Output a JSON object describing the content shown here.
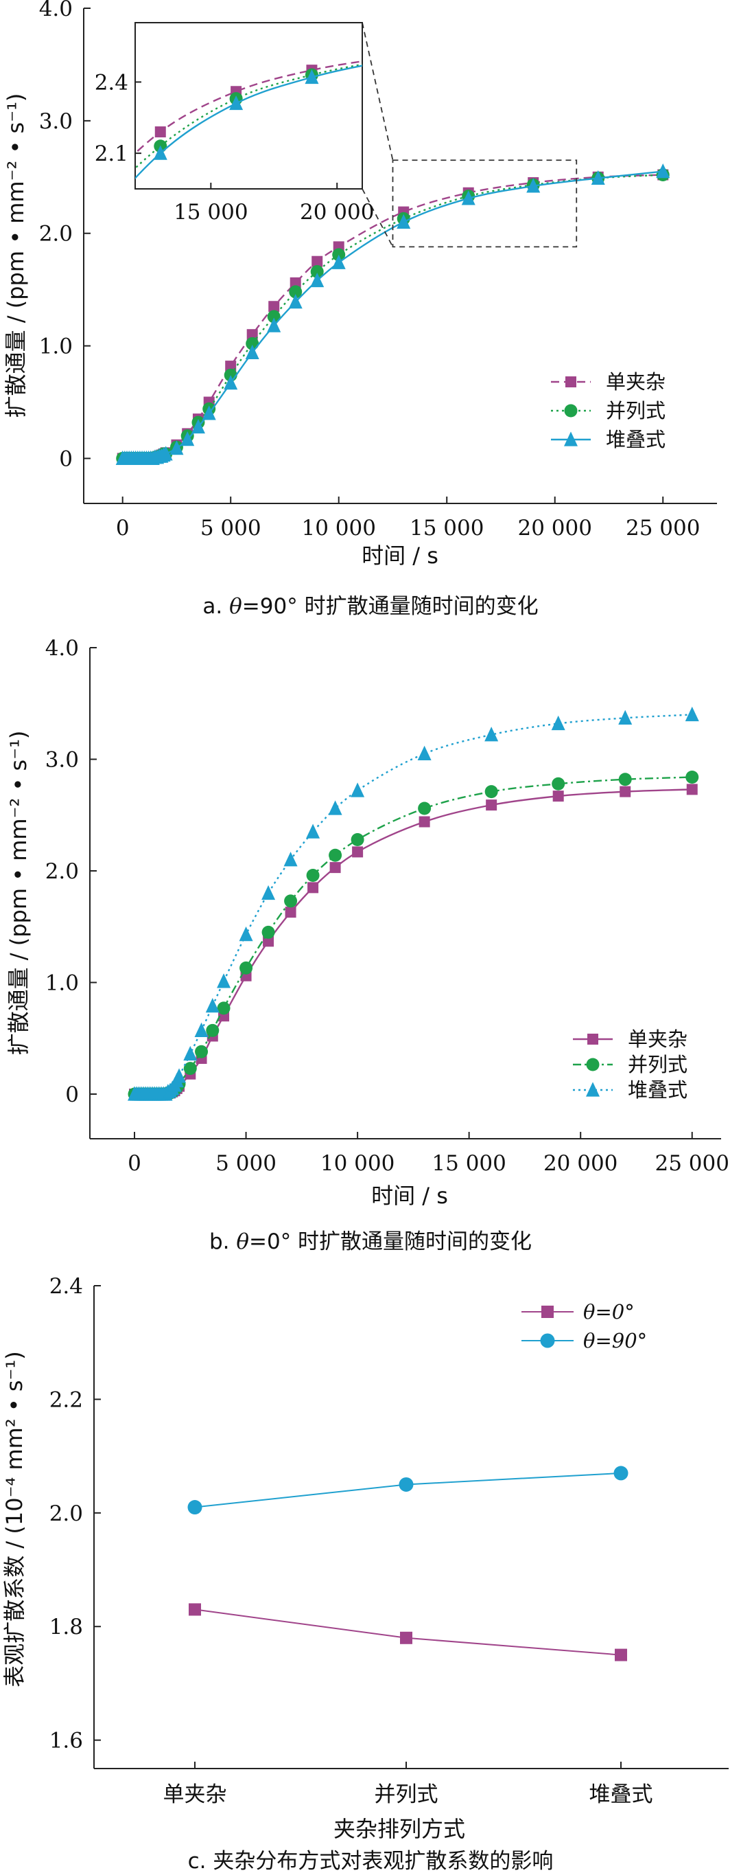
{
  "captions": {
    "a_pre": "a. ",
    "a_var": "θ",
    "a_post": "=90° 时扩散通量随时间的变化",
    "b_pre": "b. ",
    "b_var": "θ",
    "b_post": "=0° 时扩散通量随时间的变化",
    "c": "c. 夹杂分布方式对表观扩散系数的影响"
  },
  "colors": {
    "purple": "#a0448a",
    "green": "#1ea24a",
    "blue": "#1fa0cf",
    "axis": "#222222"
  },
  "chart_data": [
    {
      "id": "a",
      "type": "line",
      "xlabel": "时间 / s",
      "ylabel": "扩散通量 / (ppm • mm⁻² • s⁻¹)",
      "xlim": [
        -1800,
        27500
      ],
      "ylim": [
        -0.4,
        4.0
      ],
      "xticks": [
        0,
        5000,
        10000,
        15000,
        20000,
        25000
      ],
      "xtick_labels": [
        "0",
        "5 000",
        "10 000",
        "15 000",
        "20 000",
        "25 000"
      ],
      "yticks": [
        0,
        1.0,
        2.0,
        3.0,
        4.0
      ],
      "ytick_labels": [
        "0",
        "1.0",
        "2.0",
        "3.0",
        "4.0"
      ],
      "legend_position": "right",
      "series": [
        {
          "name": "单夹杂",
          "color": "#a0448a",
          "marker": "square",
          "line": "dashed",
          "x": [
            0,
            100,
            200,
            300,
            400,
            500,
            600,
            700,
            800,
            900,
            1000,
            1100,
            1200,
            1300,
            1400,
            1500,
            1600,
            1700,
            1800,
            1900,
            2000,
            2500,
            3000,
            3500,
            4000,
            5000,
            6000,
            7000,
            8000,
            9000,
            10000,
            13000,
            16000,
            19000,
            22000,
            25000
          ],
          "y": [
            0,
            0,
            0,
            0,
            0,
            0,
            0,
            0,
            0,
            0,
            0,
            0,
            0,
            0,
            0,
            0.01,
            0.01,
            0.02,
            0.03,
            0.04,
            0.05,
            0.12,
            0.22,
            0.35,
            0.5,
            0.82,
            1.1,
            1.35,
            1.56,
            1.75,
            1.88,
            2.19,
            2.36,
            2.45,
            2.5,
            2.52
          ]
        },
        {
          "name": "并列式",
          "color": "#1ea24a",
          "marker": "circle",
          "line": "dotted",
          "x": [
            0,
            100,
            200,
            300,
            400,
            500,
            600,
            700,
            800,
            900,
            1000,
            1100,
            1200,
            1300,
            1400,
            1500,
            1600,
            1700,
            1800,
            1900,
            2000,
            2500,
            3000,
            3500,
            4000,
            5000,
            6000,
            7000,
            8000,
            9000,
            10000,
            13000,
            16000,
            19000,
            22000,
            25000
          ],
          "y": [
            0,
            0,
            0,
            0,
            0,
            0,
            0,
            0,
            0,
            0,
            0,
            0,
            0,
            0,
            0,
            0.01,
            0.01,
            0.02,
            0.03,
            0.04,
            0.04,
            0.1,
            0.2,
            0.32,
            0.44,
            0.74,
            1.02,
            1.26,
            1.48,
            1.66,
            1.81,
            2.13,
            2.33,
            2.43,
            2.49,
            2.52
          ]
        },
        {
          "name": "堆叠式",
          "color": "#1fa0cf",
          "marker": "triangle",
          "line": "solid",
          "x": [
            0,
            100,
            200,
            300,
            400,
            500,
            600,
            700,
            800,
            900,
            1000,
            1100,
            1200,
            1300,
            1400,
            1500,
            1600,
            1700,
            1800,
            1900,
            2000,
            2500,
            3000,
            3500,
            4000,
            5000,
            6000,
            7000,
            8000,
            9000,
            10000,
            13000,
            16000,
            19000,
            22000,
            25000
          ],
          "y": [
            0,
            0,
            0,
            0,
            0,
            0,
            0,
            0,
            0,
            0,
            0,
            0,
            0,
            0,
            0,
            0.01,
            0.01,
            0.02,
            0.02,
            0.03,
            0.04,
            0.09,
            0.17,
            0.28,
            0.4,
            0.67,
            0.94,
            1.18,
            1.39,
            1.58,
            1.74,
            2.1,
            2.31,
            2.42,
            2.49,
            2.55
          ]
        }
      ],
      "inset": {
        "xlim": [
          12000,
          21000
        ],
        "ylim": [
          1.95,
          2.65
        ],
        "xticks": [
          15000,
          20000
        ],
        "xtick_labels": [
          "15 000",
          "20 000"
        ],
        "yticks": [
          2.1,
          2.4
        ],
        "ytick_labels": [
          "2.1",
          "2.4"
        ],
        "zoom_box_x": [
          12500,
          21000
        ],
        "zoom_box_y": [
          1.88,
          2.65
        ]
      }
    },
    {
      "id": "b",
      "type": "line",
      "xlabel": "时间 / s",
      "ylabel": "扩散通量 / (ppm • mm⁻² • s⁻¹)",
      "xlim": [
        -2000,
        26300
      ],
      "ylim": [
        -0.4,
        4.0
      ],
      "xticks": [
        0,
        5000,
        10000,
        15000,
        20000,
        25000
      ],
      "xtick_labels": [
        "0",
        "5 000",
        "10 000",
        "15 000",
        "20 000",
        "25 000"
      ],
      "yticks": [
        0,
        1.0,
        2.0,
        3.0,
        4.0
      ],
      "ytick_labels": [
        "0",
        "1.0",
        "2.0",
        "3.0",
        "4.0"
      ],
      "legend_position": "lower right",
      "series": [
        {
          "name": "单夹杂",
          "color": "#a0448a",
          "marker": "square",
          "line": "solid",
          "x": [
            0,
            100,
            200,
            300,
            400,
            500,
            600,
            700,
            800,
            900,
            1000,
            1100,
            1200,
            1300,
            1400,
            1500,
            1600,
            1700,
            1800,
            1900,
            2000,
            2500,
            3000,
            3500,
            4000,
            5000,
            6000,
            7000,
            8000,
            9000,
            10000,
            13000,
            16000,
            19000,
            22000,
            25000
          ],
          "y": [
            0,
            0,
            0,
            0,
            0,
            0,
            0,
            0,
            0,
            0,
            0,
            0,
            0,
            0,
            0,
            0.01,
            0.01,
            0.02,
            0.03,
            0.05,
            0.07,
            0.18,
            0.32,
            0.52,
            0.7,
            1.06,
            1.37,
            1.63,
            1.85,
            2.03,
            2.17,
            2.44,
            2.59,
            2.67,
            2.71,
            2.73
          ]
        },
        {
          "name": "并列式",
          "color": "#1ea24a",
          "marker": "circle",
          "line": "dashdot",
          "x": [
            0,
            100,
            200,
            300,
            400,
            500,
            600,
            700,
            800,
            900,
            1000,
            1100,
            1200,
            1300,
            1400,
            1500,
            1600,
            1700,
            1800,
            1900,
            2000,
            2500,
            3000,
            3500,
            4000,
            5000,
            6000,
            7000,
            8000,
            9000,
            10000,
            13000,
            16000,
            19000,
            22000,
            25000
          ],
          "y": [
            0,
            0,
            0,
            0,
            0,
            0,
            0,
            0,
            0,
            0,
            0,
            0,
            0,
            0,
            0,
            0.01,
            0.01,
            0.02,
            0.04,
            0.06,
            0.09,
            0.23,
            0.38,
            0.57,
            0.77,
            1.13,
            1.45,
            1.73,
            1.96,
            2.14,
            2.28,
            2.56,
            2.71,
            2.78,
            2.82,
            2.84
          ]
        },
        {
          "name": "堆叠式",
          "color": "#1fa0cf",
          "marker": "triangle",
          "line": "dotted",
          "x": [
            0,
            100,
            200,
            300,
            400,
            500,
            600,
            700,
            800,
            900,
            1000,
            1100,
            1200,
            1300,
            1400,
            1500,
            1600,
            1700,
            1800,
            1900,
            2000,
            2500,
            3000,
            3500,
            4000,
            5000,
            6000,
            7000,
            8000,
            9000,
            10000,
            13000,
            16000,
            19000,
            22000,
            25000
          ],
          "y": [
            0,
            0,
            0,
            0,
            0,
            0,
            0,
            0,
            0,
            0,
            0,
            0,
            0,
            0,
            0,
            0.02,
            0.03,
            0.05,
            0.08,
            0.12,
            0.16,
            0.36,
            0.57,
            0.79,
            1.01,
            1.43,
            1.8,
            2.1,
            2.35,
            2.56,
            2.72,
            3.05,
            3.22,
            3.32,
            3.37,
            3.4
          ]
        }
      ]
    },
    {
      "id": "c",
      "type": "line",
      "xlabel": "夹杂排列方式",
      "ylabel": "表观扩散系数 / (10⁻⁴ mm² • s⁻¹)",
      "categories": [
        "单夹杂",
        "并列式",
        "堆叠式"
      ],
      "ylim": [
        1.55,
        2.4
      ],
      "yticks": [
        1.6,
        1.8,
        2.0,
        2.2,
        2.4
      ],
      "ytick_labels": [
        "1.6",
        "1.8",
        "2.0",
        "2.2",
        "2.4"
      ],
      "legend_position": "top-right",
      "series": [
        {
          "name": "θ=0°",
          "color": "#a0448a",
          "marker": "square",
          "line": "solid",
          "values": [
            1.83,
            1.78,
            1.75
          ]
        },
        {
          "name": "θ=90°",
          "color": "#1fa0cf",
          "marker": "circle",
          "line": "solid",
          "values": [
            2.01,
            2.05,
            2.07
          ]
        }
      ]
    }
  ]
}
